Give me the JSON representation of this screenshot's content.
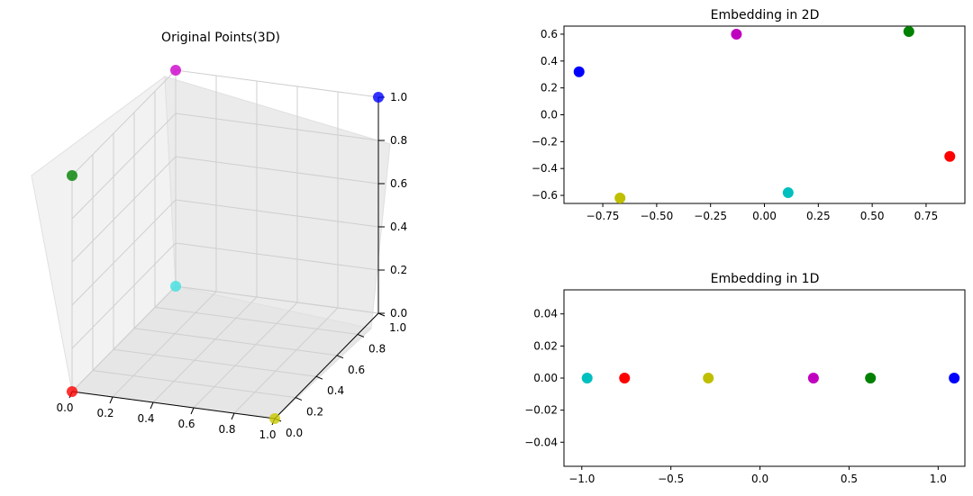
{
  "chart_data": [
    {
      "type": "scatter3d",
      "title": "Original Points(3D)",
      "x_ticks": [
        "0.0",
        "0.2",
        "0.4",
        "0.6",
        "0.8",
        "1.0"
      ],
      "y_ticks": [
        "0.0",
        "0.2",
        "0.4",
        "0.6",
        "0.8",
        "1.0"
      ],
      "z_ticks": [
        "0.0",
        "0.2",
        "0.4",
        "0.6",
        "0.8",
        "1.0"
      ],
      "xlim": [
        0,
        1
      ],
      "ylim": [
        0,
        1
      ],
      "zlim": [
        0,
        1
      ],
      "points": [
        {
          "x": 0,
          "y": 0,
          "z": 0,
          "color": "#ff0000"
        },
        {
          "x": 1,
          "y": 0,
          "z": 0,
          "color": "#c8c800"
        },
        {
          "x": 0,
          "y": 1,
          "z": 0,
          "color": "#40e0e0"
        },
        {
          "x": 1,
          "y": 1,
          "z": 1,
          "color": "#0000ff"
        },
        {
          "x": 0,
          "y": 1,
          "z": 1,
          "color": "#cc00cc"
        },
        {
          "x": 0,
          "y": 0,
          "z": 1,
          "color": "#008000"
        }
      ]
    },
    {
      "type": "scatter",
      "title": "Embedding in 2D",
      "xlim": [
        -0.93,
        0.93
      ],
      "ylim": [
        -0.66,
        0.66
      ],
      "x_ticks": [
        -0.75,
        -0.5,
        -0.25,
        0.0,
        0.25,
        0.5,
        0.75
      ],
      "x_tick_labels": [
        "−0.75",
        "−0.50",
        "−0.25",
        "0.00",
        "0.25",
        "0.50",
        "0.75"
      ],
      "y_ticks": [
        0.6,
        0.4,
        0.2,
        0.0,
        -0.2,
        -0.4,
        -0.6
      ],
      "y_tick_labels": [
        "0.6",
        "0.4",
        "0.2",
        "0.0",
        "−0.2",
        "−0.4",
        "−0.6"
      ],
      "points": [
        {
          "x": -0.86,
          "y": 0.32,
          "color": "#0000ff"
        },
        {
          "x": -0.13,
          "y": 0.6,
          "color": "#bf00bf"
        },
        {
          "x": 0.67,
          "y": 0.62,
          "color": "#008000"
        },
        {
          "x": 0.86,
          "y": -0.31,
          "color": "#ff0000"
        },
        {
          "x": 0.11,
          "y": -0.58,
          "color": "#00bfbf"
        },
        {
          "x": -0.67,
          "y": -0.62,
          "color": "#bfbf00"
        }
      ]
    },
    {
      "type": "scatter",
      "title": "Embedding in 1D",
      "xlim": [
        -1.1,
        1.15
      ],
      "ylim": [
        -0.055,
        0.055
      ],
      "x_ticks": [
        -1.0,
        -0.5,
        0.0,
        0.5,
        1.0
      ],
      "x_tick_labels": [
        "−1.0",
        "−0.5",
        "0.0",
        "0.5",
        "1.0"
      ],
      "y_ticks": [
        0.04,
        0.02,
        0.0,
        -0.02,
        -0.04
      ],
      "y_tick_labels": [
        "0.04",
        "0.02",
        "0.00",
        "−0.02",
        "−0.04"
      ],
      "points": [
        {
          "x": -0.97,
          "y": 0,
          "color": "#00bfbf"
        },
        {
          "x": -0.76,
          "y": 0,
          "color": "#ff0000"
        },
        {
          "x": -0.29,
          "y": 0,
          "color": "#bfbf00"
        },
        {
          "x": 0.3,
          "y": 0,
          "color": "#bf00bf"
        },
        {
          "x": 0.62,
          "y": 0,
          "color": "#008000"
        },
        {
          "x": 1.09,
          "y": 0,
          "color": "#0000ff"
        }
      ]
    }
  ]
}
